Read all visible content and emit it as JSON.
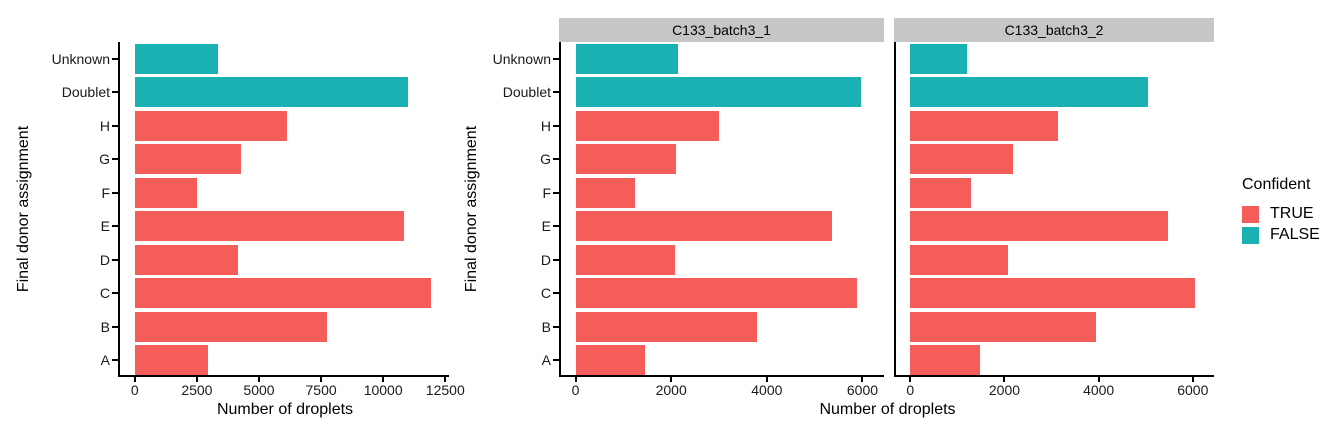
{
  "chart_data": {
    "type": "bar",
    "orientation": "horizontal",
    "xlabel": "Number of droplets",
    "ylabel": "Final donor assignment",
    "grid": false,
    "legend_position": "right",
    "categories_top_to_bottom": [
      "Unknown",
      "Doublet",
      "H",
      "G",
      "F",
      "E",
      "D",
      "C",
      "B",
      "A"
    ],
    "category_confident": [
      "FALSE",
      "FALSE",
      "TRUE",
      "TRUE",
      "TRUE",
      "TRUE",
      "TRUE",
      "TRUE",
      "TRUE",
      "TRUE"
    ],
    "colors": {
      "TRUE": "#F45D5A",
      "FALSE": "#1AB1B3"
    },
    "strip_background": "#c6c6c6",
    "panels": [
      {
        "strip_label": null,
        "x_ticks": [
          0,
          2500,
          5000,
          7500,
          10000,
          12500
        ],
        "x_range": [
          0,
          12650
        ],
        "values": [
          3350,
          11000,
          6140,
          4290,
          2520,
          10850,
          4140,
          11930,
          7750,
          2930
        ]
      },
      {
        "strip_label": "C133_batch3_1",
        "x_ticks": [
          0,
          2000,
          4000,
          6000
        ],
        "x_range": [
          0,
          6450
        ],
        "values": [
          2150,
          5960,
          3010,
          2100,
          1240,
          5370,
          2070,
          5880,
          3800,
          1450
        ]
      },
      {
        "strip_label": "C133_batch3_2",
        "x_ticks": [
          0,
          2000,
          4000,
          6000
        ],
        "x_range": [
          0,
          6450
        ],
        "values": [
          1200,
          5040,
          3130,
          2190,
          1280,
          5480,
          2070,
          6050,
          3950,
          1480
        ]
      }
    ],
    "legend": {
      "title": "Confident",
      "entries": [
        {
          "label": "TRUE",
          "color": "#F45D5A"
        },
        {
          "label": "FALSE",
          "color": "#1AB1B3"
        }
      ]
    }
  }
}
